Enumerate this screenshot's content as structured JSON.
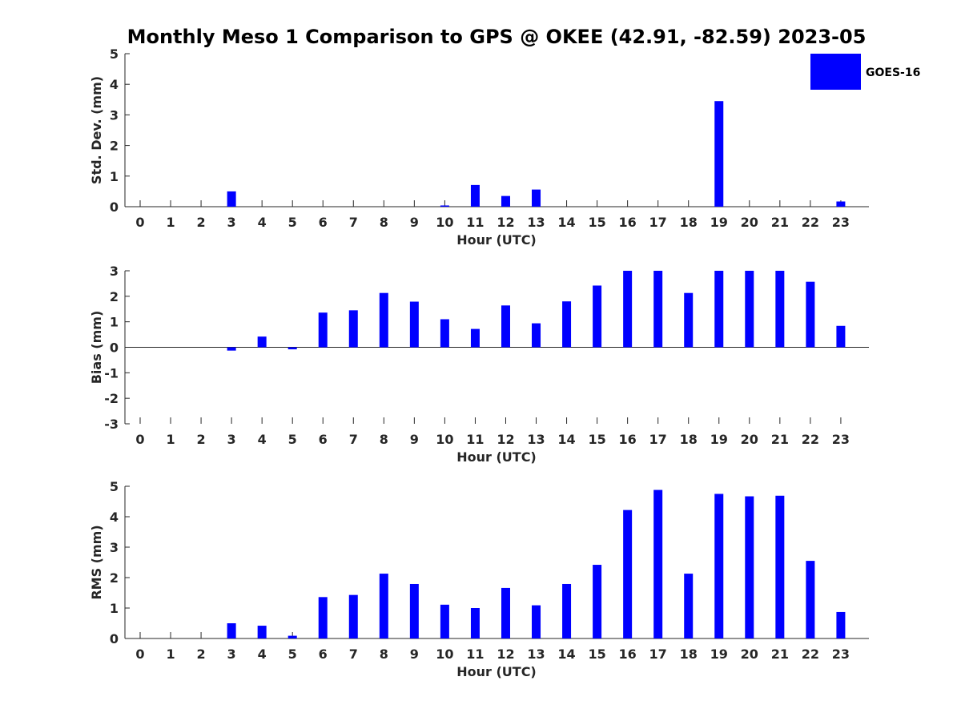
{
  "title": "Monthly Meso 1 Comparison to GPS @ OKEE (42.91, -82.59) 2023-05",
  "colors": {
    "bar": "#0000ff",
    "axis": "#262626"
  },
  "legend": {
    "label": "GOES-16",
    "placement": "top-right"
  },
  "chart_data": [
    {
      "type": "bar",
      "ylabel": "Std. Dev. (mm)",
      "xlabel": "Hour (UTC)",
      "ylim": [
        0,
        5
      ],
      "yticks": [
        0,
        1,
        2,
        3,
        4,
        5
      ],
      "categories": [
        "0",
        "1",
        "2",
        "3",
        "4",
        "5",
        "6",
        "7",
        "8",
        "9",
        "10",
        "11",
        "12",
        "13",
        "14",
        "15",
        "16",
        "17",
        "18",
        "19",
        "20",
        "21",
        "22",
        "23"
      ],
      "series": [
        {
          "name": "GOES-16",
          "values": [
            0,
            0,
            0,
            0.5,
            0,
            0,
            0,
            0,
            0,
            0,
            0.04,
            0.71,
            0.35,
            0.56,
            0,
            0,
            0,
            0,
            0,
            3.45,
            0,
            0,
            0,
            0.17
          ]
        }
      ]
    },
    {
      "type": "bar",
      "ylabel": "Bias (mm)",
      "xlabel": "Hour (UTC)",
      "ylim": [
        -3,
        3
      ],
      "yticks": [
        -3,
        -2,
        -1,
        0,
        1,
        2,
        3
      ],
      "categories": [
        "0",
        "1",
        "2",
        "3",
        "4",
        "5",
        "6",
        "7",
        "8",
        "9",
        "10",
        "11",
        "12",
        "13",
        "14",
        "15",
        "16",
        "17",
        "18",
        "19",
        "20",
        "21",
        "22",
        "23"
      ],
      "series": [
        {
          "name": "GOES-16",
          "values": [
            0,
            0,
            0,
            -0.13,
            0.42,
            -0.08,
            1.36,
            1.45,
            2.13,
            1.79,
            1.1,
            0.72,
            1.64,
            0.94,
            1.8,
            2.42,
            3.0,
            3.0,
            2.13,
            3.0,
            3.0,
            3.0,
            2.57,
            0.84
          ]
        }
      ]
    },
    {
      "type": "bar",
      "ylabel": "RMS (mm)",
      "xlabel": "Hour (UTC)",
      "ylim": [
        0,
        5
      ],
      "yticks": [
        0,
        1,
        2,
        3,
        4,
        5
      ],
      "categories": [
        "0",
        "1",
        "2",
        "3",
        "4",
        "5",
        "6",
        "7",
        "8",
        "9",
        "10",
        "11",
        "12",
        "13",
        "14",
        "15",
        "16",
        "17",
        "18",
        "19",
        "20",
        "21",
        "22",
        "23"
      ],
      "series": [
        {
          "name": "GOES-16",
          "values": [
            0,
            0,
            0,
            0.5,
            0.42,
            0.09,
            1.36,
            1.43,
            2.13,
            1.79,
            1.11,
            1.0,
            1.66,
            1.09,
            1.79,
            2.42,
            4.22,
            4.88,
            2.13,
            4.75,
            4.67,
            4.69,
            2.55,
            0.87
          ]
        }
      ]
    }
  ]
}
